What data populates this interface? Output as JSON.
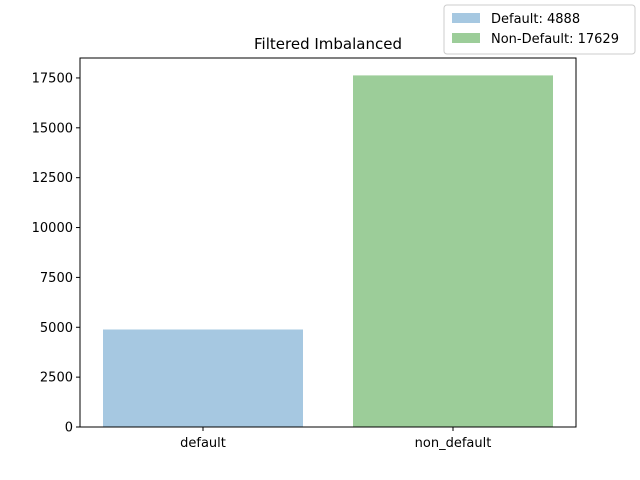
{
  "chart_data": {
    "type": "bar",
    "title": "Filtered Imbalanced",
    "xlabel": "",
    "ylabel": "",
    "categories": [
      "default",
      "non_default"
    ],
    "values": [
      4888,
      17629
    ],
    "colors": [
      "#a6c8e1",
      "#9ccd99"
    ],
    "ylim": [
      0,
      18500
    ],
    "yticks": [
      0,
      2500,
      5000,
      7500,
      10000,
      12500,
      15000,
      17500
    ],
    "ytick_labels": [
      "0",
      "2500",
      "5000",
      "7500",
      "10000",
      "12500",
      "15000",
      "17500"
    ],
    "grid": false,
    "legend": {
      "placement": "top-right",
      "entries": [
        {
          "label": "Default: 4888",
          "color": "#a6c8e1"
        },
        {
          "label": "Non-Default: 17629",
          "color": "#9ccd99"
        }
      ]
    }
  }
}
